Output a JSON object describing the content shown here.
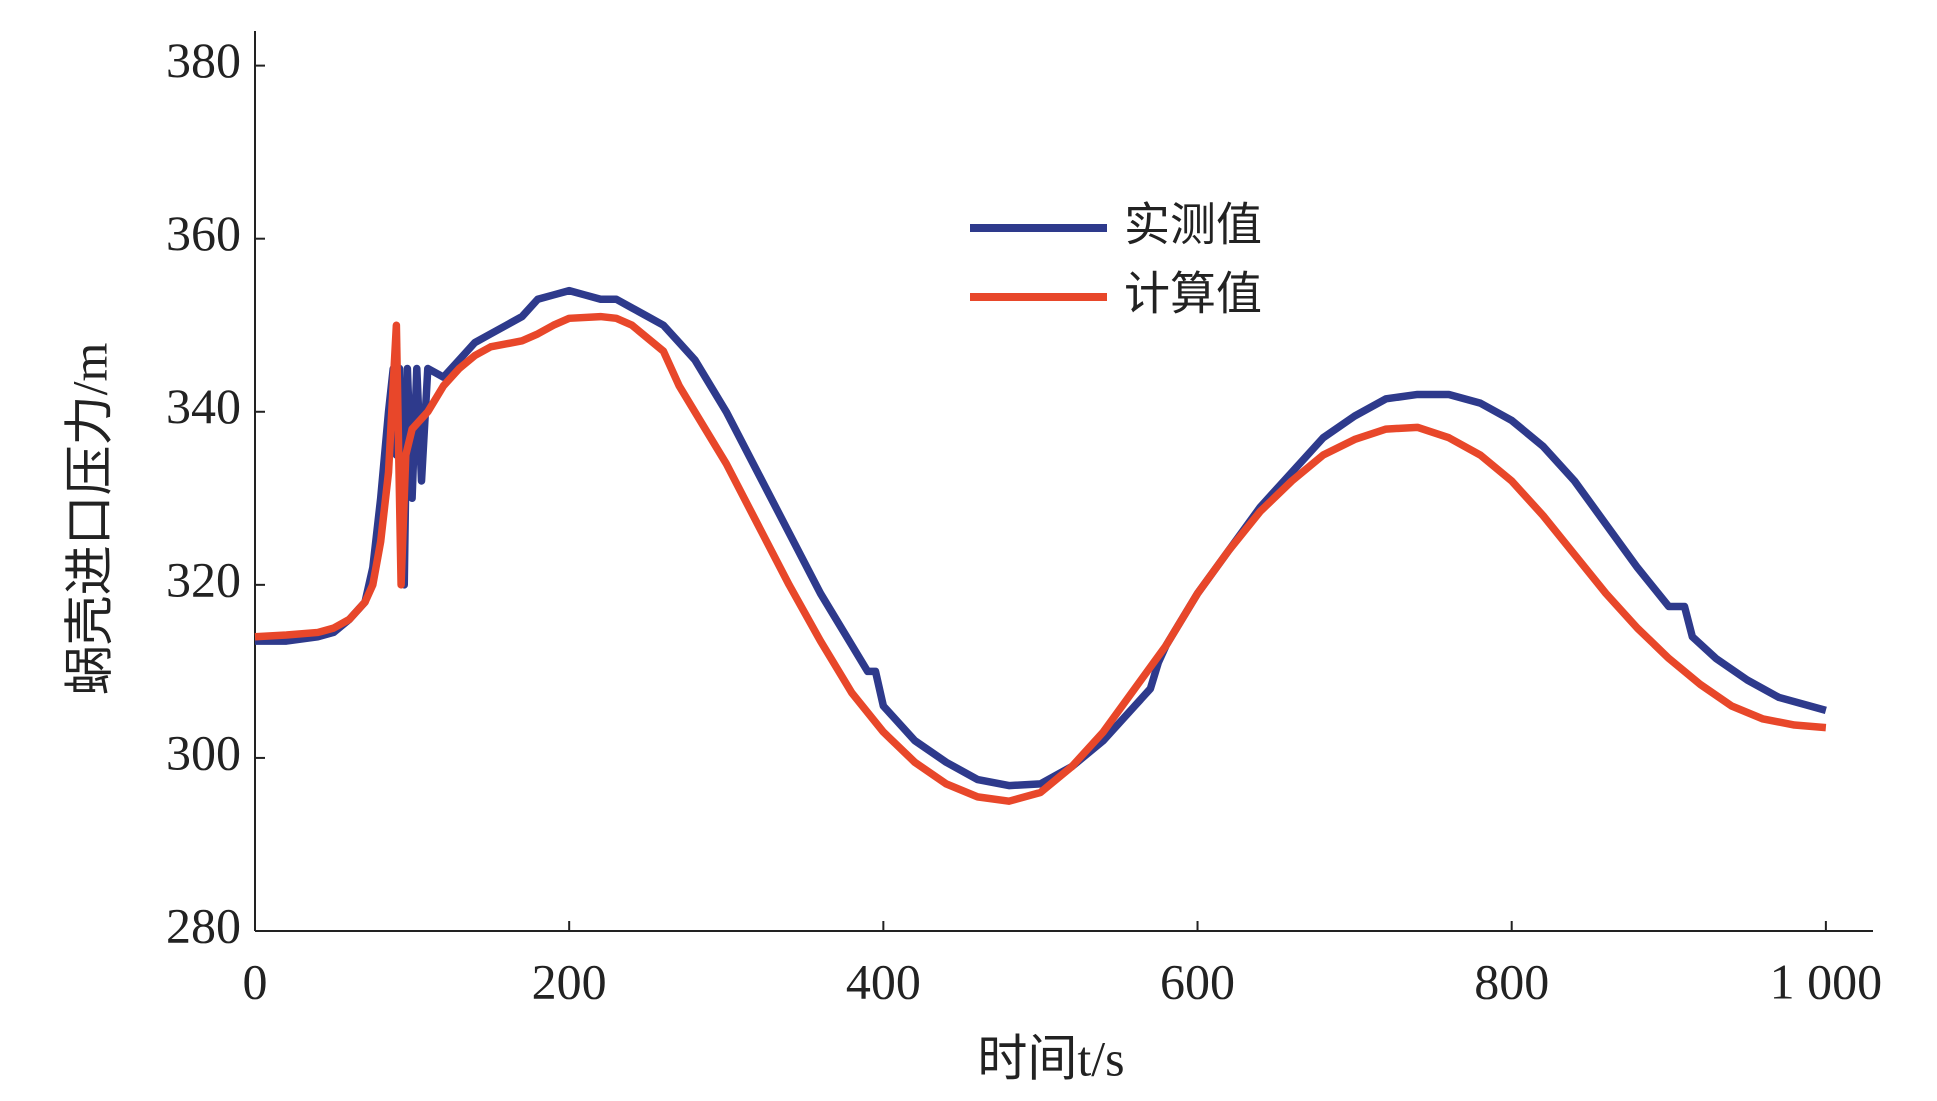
{
  "chart_data": {
    "type": "line",
    "xlabel": "时间t/s",
    "ylabel": "蜗壳进口压力/m",
    "xlim": [
      0,
      1030
    ],
    "ylim": [
      280,
      384
    ],
    "xticks": [
      0,
      200,
      400,
      600,
      800,
      {
        "value": 1000,
        "label": "1 000"
      }
    ],
    "yticks": [
      280,
      300,
      320,
      340,
      360,
      380
    ],
    "legend": "upper-center",
    "series": [
      {
        "name": "实测值",
        "color": "#2e3a8c",
        "x": [
          0,
          20,
          40,
          50,
          60,
          70,
          75,
          80,
          85,
          88,
          90,
          92,
          95,
          97,
          100,
          103,
          106,
          110,
          120,
          130,
          140,
          150,
          160,
          170,
          180,
          190,
          200,
          210,
          220,
          230,
          240,
          250,
          260,
          270,
          280,
          290,
          300,
          320,
          340,
          360,
          380,
          390,
          395,
          400,
          420,
          440,
          460,
          480,
          500,
          520,
          540,
          560,
          570,
          575,
          580,
          600,
          620,
          640,
          660,
          680,
          700,
          720,
          740,
          760,
          780,
          800,
          820,
          840,
          860,
          880,
          900,
          910,
          915,
          930,
          950,
          970,
          1000
        ],
        "values": [
          313.5,
          313.5,
          314,
          314.5,
          316,
          318,
          322,
          330,
          340,
          345,
          335,
          345,
          320,
          345,
          330,
          345,
          332,
          345,
          344,
          346,
          348,
          349,
          350,
          351,
          353,
          353.5,
          354,
          353.5,
          353,
          353,
          352,
          351,
          350,
          348,
          346,
          343,
          340,
          333,
          326,
          319,
          313,
          310,
          310,
          306,
          302,
          299.5,
          297.5,
          296.8,
          297,
          299,
          302,
          306,
          308,
          311,
          313,
          319,
          324,
          329,
          333,
          337,
          339.5,
          341.5,
          342,
          342,
          341,
          339,
          336,
          332,
          327,
          322,
          317.5,
          317.5,
          314,
          311.5,
          309,
          307,
          305.5
        ]
      },
      {
        "name": "计算值",
        "color": "#e8472a",
        "x": [
          0,
          20,
          40,
          50,
          60,
          70,
          75,
          80,
          85,
          90,
          93,
          96,
          100,
          110,
          120,
          130,
          140,
          150,
          170,
          180,
          190,
          200,
          220,
          230,
          240,
          260,
          270,
          280,
          300,
          320,
          340,
          360,
          380,
          400,
          420,
          440,
          460,
          480,
          500,
          520,
          540,
          560,
          580,
          600,
          620,
          640,
          660,
          680,
          700,
          720,
          740,
          760,
          780,
          800,
          820,
          840,
          860,
          880,
          900,
          920,
          940,
          960,
          980,
          1000
        ],
        "values": [
          314,
          314.2,
          314.5,
          315,
          316,
          318,
          320,
          325,
          333,
          350,
          320,
          335,
          338,
          340,
          343,
          345,
          346.5,
          347.5,
          348.2,
          349,
          350,
          350.8,
          351,
          350.8,
          350,
          347,
          343,
          340,
          334,
          327,
          320,
          313.5,
          307.5,
          303,
          299.5,
          297,
          295.5,
          295,
          296,
          299,
          303,
          308,
          313,
          319,
          324,
          328.5,
          332,
          335,
          336.8,
          338,
          338.2,
          337,
          335,
          332,
          328,
          323.5,
          319,
          315,
          311.5,
          308.5,
          306,
          304.5,
          303.8,
          303.5
        ]
      }
    ]
  }
}
